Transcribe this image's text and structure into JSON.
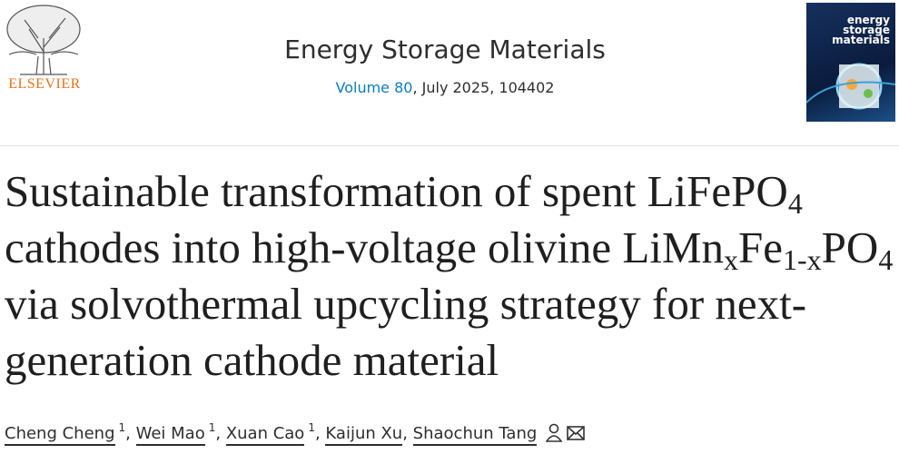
{
  "header": {
    "publisher": "ELSEVIER",
    "journal": "Energy Storage Materials",
    "volume": "Volume 80",
    "issue_info": ", July 2025, 104402",
    "cover_title": [
      "energy",
      "storage",
      "materials"
    ]
  },
  "article": {
    "title": [
      {
        "text": "Sustainable transformation of spent LiFePO",
        "sub": "4"
      },
      {
        "text": " cathodes into high-voltage olivine LiMn",
        "sub": "x"
      },
      {
        "text": "Fe",
        "sub": "1-x"
      },
      {
        "text": "PO",
        "sub": "4"
      },
      {
        "text": " via solvothermal upcycling strategy for next-generation cathode material"
      }
    ],
    "authors": [
      {
        "name": "Cheng Cheng",
        "affiliation": "1"
      },
      {
        "name": "Wei Mao",
        "affiliation": "1"
      },
      {
        "name": "Xuan Cao",
        "affiliation": "1"
      },
      {
        "name": "Kaijun Xu"
      },
      {
        "name": "Shaochun Tang"
      }
    ],
    "author_separator": ", "
  }
}
